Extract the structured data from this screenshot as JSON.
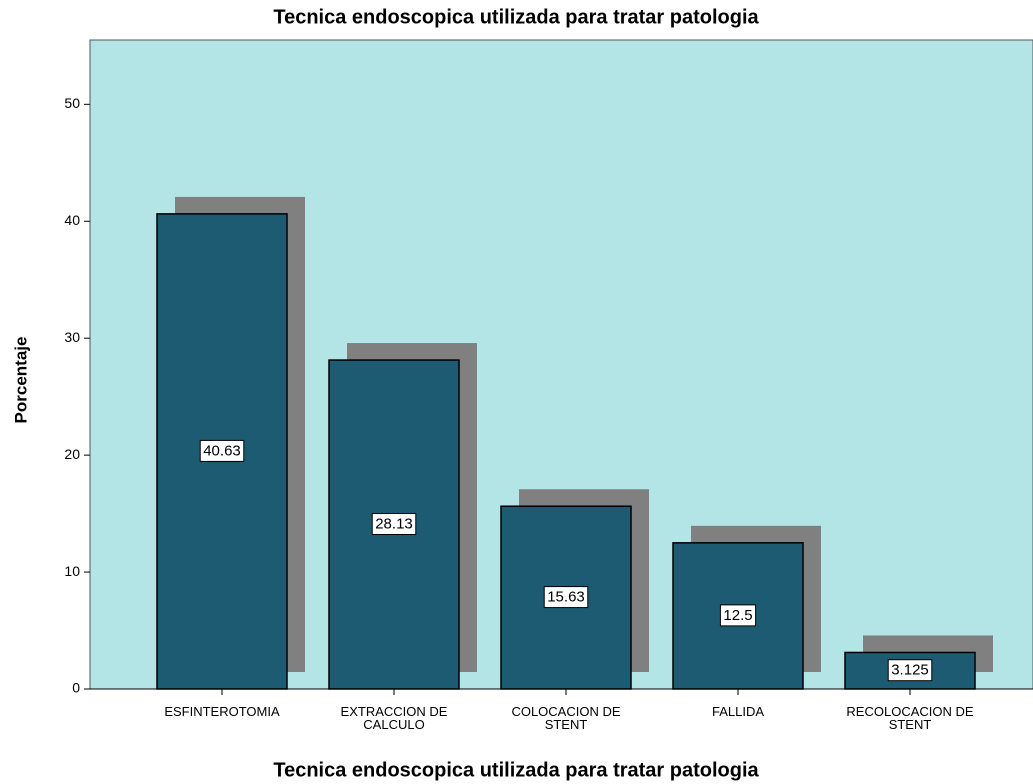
{
  "chart_data": {
    "type": "bar",
    "title": "Tecnica endoscopica utilizada para tratar patologia",
    "x_label": "Tecnica endoscopica utilizada para tratar patologia",
    "y_label": "Porcentaje",
    "categories": [
      "ESFINTEROTOMIA",
      "EXTRACCION DE CALCULO",
      "COLOCACION DE STENT",
      "FALLIDA",
      "RECOLOCACION DE STENT"
    ],
    "values": [
      40.63,
      28.13,
      15.63,
      12.5,
      3.125
    ],
    "color": "#1d5b72",
    "ylim": [
      0,
      55.5
    ],
    "yticks": [
      0,
      10,
      20,
      30,
      40,
      50
    ],
    "grid": false
  }
}
